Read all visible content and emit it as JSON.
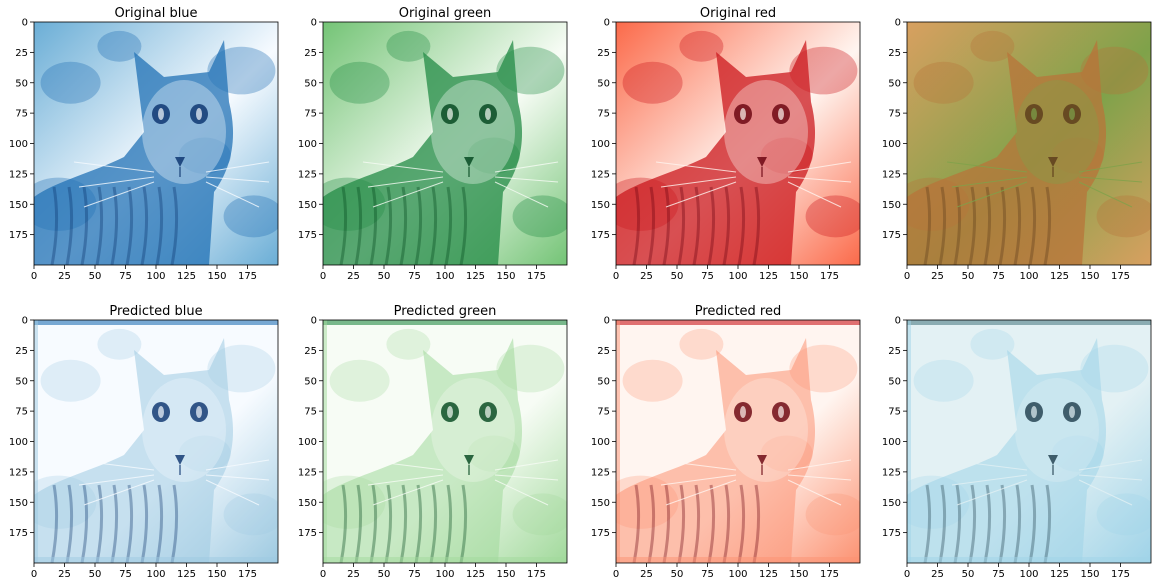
{
  "figure": {
    "panels": [
      {
        "title": "Original blue",
        "kind": "channel",
        "palette": [
          "#08306b",
          "#2171b5",
          "#6baed6",
          "#f7fbff"
        ],
        "style": "original"
      },
      {
        "title": "Original green",
        "kind": "channel",
        "palette": [
          "#00441b",
          "#238b45",
          "#74c476",
          "#f7fcf5"
        ],
        "style": "original"
      },
      {
        "title": "Original red",
        "kind": "channel",
        "palette": [
          "#67000d",
          "#cb181d",
          "#fb6a4a",
          "#fff5f0"
        ],
        "style": "original"
      },
      {
        "title": "",
        "kind": "color",
        "palette": [
          "#5a3a1a",
          "#b8743a",
          "#d8a060",
          "#7fa24a"
        ],
        "style": "original"
      },
      {
        "title": "Predicted blue",
        "kind": "channel",
        "palette": [
          "#08306b",
          "#2171b5",
          "#9ecae1",
          "#f7fbff"
        ],
        "style": "predicted"
      },
      {
        "title": "Predicted green",
        "kind": "channel",
        "palette": [
          "#00441b",
          "#238b45",
          "#a1d99b",
          "#f7fcf5"
        ],
        "style": "predicted"
      },
      {
        "title": "Predicted red",
        "kind": "channel",
        "palette": [
          "#67000d",
          "#cb181d",
          "#fc9272",
          "#fff5f0"
        ],
        "style": "predicted"
      },
      {
        "title": "",
        "kind": "color",
        "palette": [
          "#1d3b4a",
          "#4f7f86",
          "#9fd3e8",
          "#e3f1f4"
        ],
        "style": "predicted"
      }
    ],
    "x_ticks": [
      "0",
      "25",
      "50",
      "75",
      "100",
      "125",
      "150",
      "175"
    ],
    "y_ticks": [
      "0",
      "25",
      "50",
      "75",
      "100",
      "125",
      "150",
      "175"
    ],
    "image_extent": 200
  }
}
